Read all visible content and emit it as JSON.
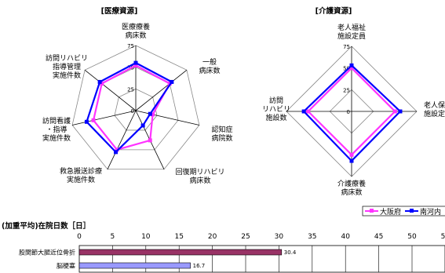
{
  "chart_data": [
    {
      "type": "radar",
      "title": "[医療資源]",
      "axes": [
        "医療療養\n病床数",
        "一般\n病床数",
        "認知症\n病院数",
        "回復期リハビリ\n病床数",
        "救急搬送診療\n実施件数",
        "訪問看護\n・指導\n実施件数",
        "訪問リハビリ\n指導管理\n実施件数"
      ],
      "ticks": [
        "0",
        "25",
        "50",
        "75"
      ],
      "rmax": 75,
      "series": [
        {
          "name": "大阪府",
          "color": "#ff33ff",
          "values": [
            52,
            50,
            20,
            38,
            50,
            50,
            50
          ]
        },
        {
          "name": "南河内",
          "color": "#0000ff",
          "values": [
            55,
            53,
            17,
            19,
            53,
            58,
            53
          ]
        }
      ]
    },
    {
      "type": "radar",
      "title": "[介護資源]",
      "axes": [
        "老人福祉\n施設定員",
        "老人保健\n施設定員",
        "介護療養\n病床数",
        "訪問\nリハビリ\n施設数"
      ],
      "ticks": [
        "0",
        "25",
        "50",
        "75"
      ],
      "rmax": 75,
      "series": [
        {
          "name": "大阪府",
          "color": "#ff33ff",
          "values": [
            50,
            50,
            50,
            50
          ]
        },
        {
          "name": "南河内",
          "color": "#0000ff",
          "values": [
            53,
            56,
            57,
            55
          ]
        }
      ]
    },
    {
      "type": "bar",
      "orientation": "horizontal",
      "title": "(加重平均)在院日数［日］",
      "categories": [
        "股関節大腿近位骨折",
        "脳梗塞"
      ],
      "values": [
        30.4,
        16.7
      ],
      "value_labels": [
        "30.4",
        "16.7"
      ],
      "colors": [
        "#993366",
        "#9999ff"
      ],
      "xticks": [
        "0",
        "5",
        "10",
        "15",
        "20",
        "25",
        "30",
        "35",
        "40",
        "45",
        "50",
        "55"
      ],
      "xlim": [
        0,
        55
      ],
      "grid": true
    }
  ],
  "legend": [
    {
      "label": "大阪府",
      "color": "#ff33ff"
    },
    {
      "label": "南河内",
      "color": "#0000ff"
    }
  ]
}
